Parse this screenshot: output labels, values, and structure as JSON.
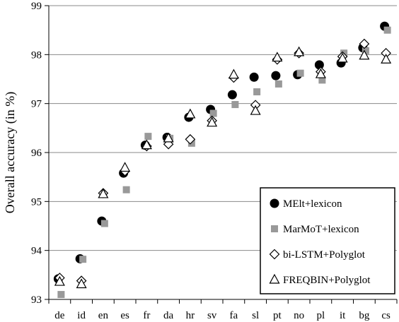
{
  "chart_data": {
    "type": "scatter",
    "title": "",
    "xlabel": "",
    "ylabel": "Overall accuracy (in %)",
    "ylim": [
      93,
      99
    ],
    "yticks": [
      93,
      94,
      95,
      96,
      97,
      98,
      99
    ],
    "grid": true,
    "legend_position": "bottom-right",
    "categories": [
      "de",
      "id",
      "en",
      "es",
      "fr",
      "da",
      "hr",
      "sv",
      "fa",
      "sl",
      "pt",
      "no",
      "pl",
      "it",
      "bg",
      "cs"
    ],
    "series": [
      {
        "name": "MElt+lexicon",
        "marker": "filled-circle",
        "color": "#000000",
        "values": [
          93.42,
          93.83,
          94.6,
          95.58,
          96.15,
          96.31,
          96.72,
          96.88,
          97.18,
          97.54,
          97.57,
          97.59,
          97.79,
          97.83,
          98.14,
          98.58
        ]
      },
      {
        "name": "MarMoT+lexicon",
        "marker": "filled-square",
        "color": "#999999",
        "values": [
          93.1,
          93.82,
          94.55,
          95.24,
          96.33,
          96.29,
          96.19,
          96.8,
          96.98,
          97.24,
          97.4,
          97.62,
          97.48,
          98.03,
          98.08,
          98.5
        ]
      },
      {
        "name": "bi-LSTM+Polyglot",
        "marker": "open-diamond",
        "color": "#000000",
        "values": [
          93.44,
          93.38,
          95.17,
          95.62,
          96.13,
          96.17,
          96.27,
          96.65,
          97.53,
          96.97,
          97.9,
          98.03,
          97.65,
          97.96,
          98.22,
          98.03
        ]
      },
      {
        "name": "FREQBIN+Polyglot",
        "marker": "open-triangle",
        "color": "#000000",
        "values": [
          93.36,
          93.31,
          95.15,
          95.69,
          96.15,
          96.29,
          96.78,
          96.61,
          97.59,
          96.85,
          97.94,
          98.05,
          97.6,
          97.92,
          97.98,
          97.9
        ]
      }
    ]
  }
}
